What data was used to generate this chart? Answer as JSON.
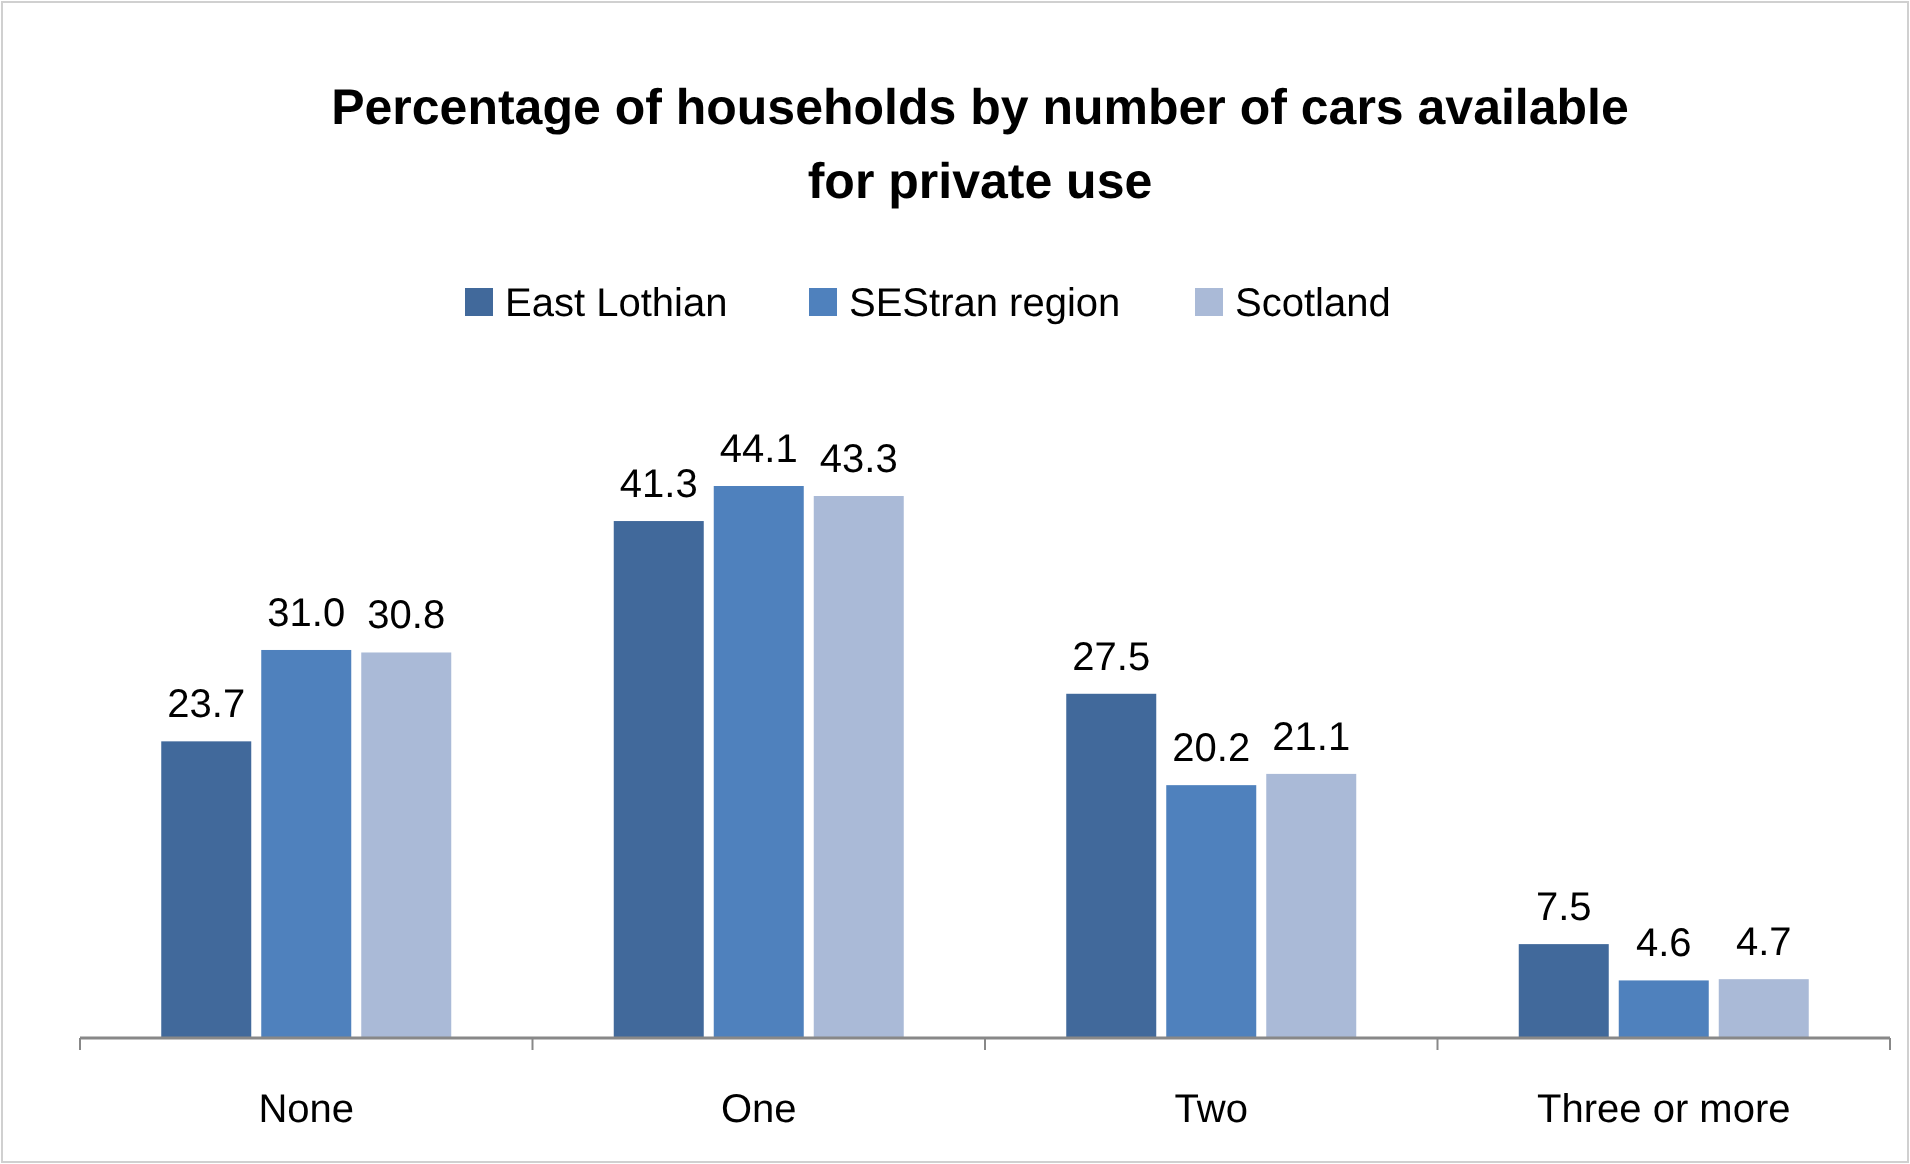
{
  "chart_data": {
    "type": "bar",
    "title": "Percentage of households by number of cars available for private use",
    "categories": [
      "None",
      "One",
      "Two",
      "Three or more"
    ],
    "relative": false,
    "series": [
      {
        "name": "East Lothian",
        "color": "#41699b",
        "values": [
          23.7,
          41.3,
          27.5,
          7.5
        ],
        "value_labels": [
          "23.7",
          "41.3",
          "27.5",
          "7.5"
        ]
      },
      {
        "name": "SEStran region",
        "color": "#4f81bd",
        "values": [
          31.0,
          44.1,
          20.2,
          4.6
        ],
        "value_labels": [
          "31.0",
          "44.1",
          "20.2",
          "4.6"
        ]
      },
      {
        "name": "Scotland",
        "color": "#aabad7",
        "values": [
          30.8,
          43.3,
          21.1,
          4.7
        ],
        "value_labels": [
          "30.8",
          "43.3",
          "21.1",
          "4.7"
        ]
      }
    ],
    "legend": "top"
  }
}
